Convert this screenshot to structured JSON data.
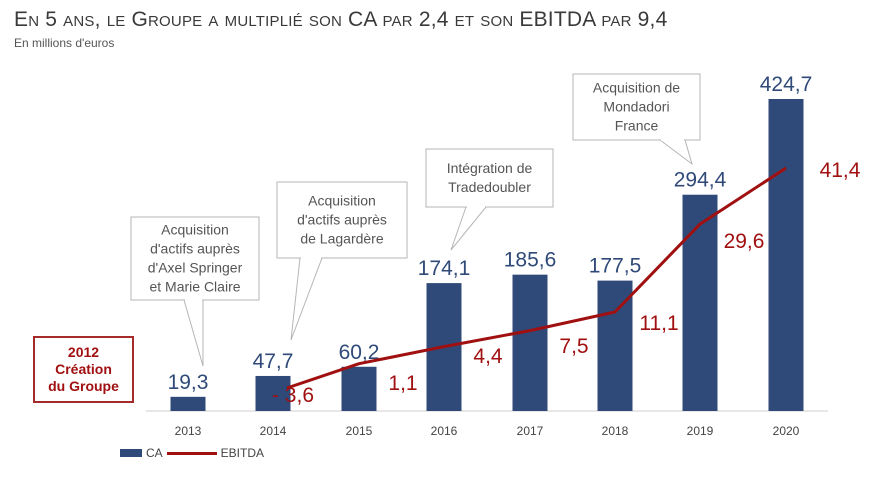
{
  "header": {
    "title": "En 5 ans, le Groupe a multiplié son CA par 2,4 et son EBITDA par 9,4",
    "subtitle": "En millions d'euros"
  },
  "creation_box": {
    "line1": "2012",
    "line2": "Création",
    "line3": "du Groupe"
  },
  "legend": {
    "ca": "CA",
    "ebitda": "EBITDA"
  },
  "colors": {
    "bar": "#2f4a78",
    "line": "#a01010",
    "bar_label": "#2f4a78",
    "line_label": "#a01010"
  },
  "annotations": [
    {
      "lines": [
        "Acquisition",
        "d'actifs auprès",
        "d'Axel Springer",
        "et Marie Claire"
      ],
      "year": "2013"
    },
    {
      "lines": [
        "Acquisition",
        "d'actifs auprès",
        "de Lagardère"
      ],
      "year": "2014"
    },
    {
      "lines": [
        "Intégration de",
        "Tradedoubler"
      ],
      "year": "2016"
    },
    {
      "lines": [
        "Acquisition de",
        "Mondadori",
        "France"
      ],
      "year": "2019"
    }
  ],
  "chart_data": {
    "type": "bar",
    "title": "En 5 ans, le Groupe a multiplié son CA par 2,4 et son EBITDA par 9,4",
    "subtitle": "En millions d'euros",
    "categories": [
      "2013",
      "2014",
      "2015",
      "2016",
      "2017",
      "2018",
      "2019",
      "2020"
    ],
    "series": [
      {
        "name": "CA",
        "type": "bar",
        "values": [
          19.3,
          47.7,
          60.2,
          174.1,
          185.6,
          177.5,
          294.4,
          424.7
        ],
        "labels": [
          "19,3",
          "47,7",
          "60,2",
          "174,1",
          "185,6",
          "177,5",
          "294,4",
          "424,7"
        ]
      },
      {
        "name": "EBITDA",
        "type": "line",
        "values": [
          null,
          -3.6,
          1.1,
          4.4,
          7.5,
          11.1,
          29.6,
          41.4
        ],
        "labels": [
          "",
          "- 3,6",
          "1,1",
          "4,4",
          "7,5",
          "11,1",
          "29,6",
          "41,4"
        ]
      }
    ],
    "legend_position": "bottom-left",
    "grid": false
  }
}
